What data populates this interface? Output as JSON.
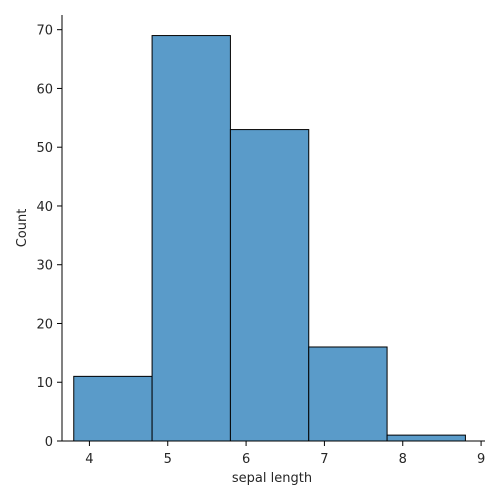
{
  "chart_data": {
    "type": "bar",
    "title": "",
    "xlabel": "sepal length",
    "ylabel": "Count",
    "bins": [
      {
        "x_start": 3.8,
        "x_end": 4.8,
        "count": 11
      },
      {
        "x_start": 4.8,
        "x_end": 5.8,
        "count": 69
      },
      {
        "x_start": 5.8,
        "x_end": 6.8,
        "count": 53
      },
      {
        "x_start": 6.8,
        "x_end": 7.8,
        "count": 16
      },
      {
        "x_start": 7.8,
        "x_end": 8.8,
        "count": 1
      }
    ],
    "xlim": [
      3.65,
      9.05
    ],
    "ylim": [
      0,
      72.5
    ],
    "xticks": [
      4,
      5,
      6,
      7,
      8,
      9
    ],
    "yticks": [
      0,
      10,
      20,
      30,
      40,
      50,
      60,
      70
    ],
    "bar_color": "#5a9bc9",
    "edge_color": "#000000",
    "grid": false
  }
}
